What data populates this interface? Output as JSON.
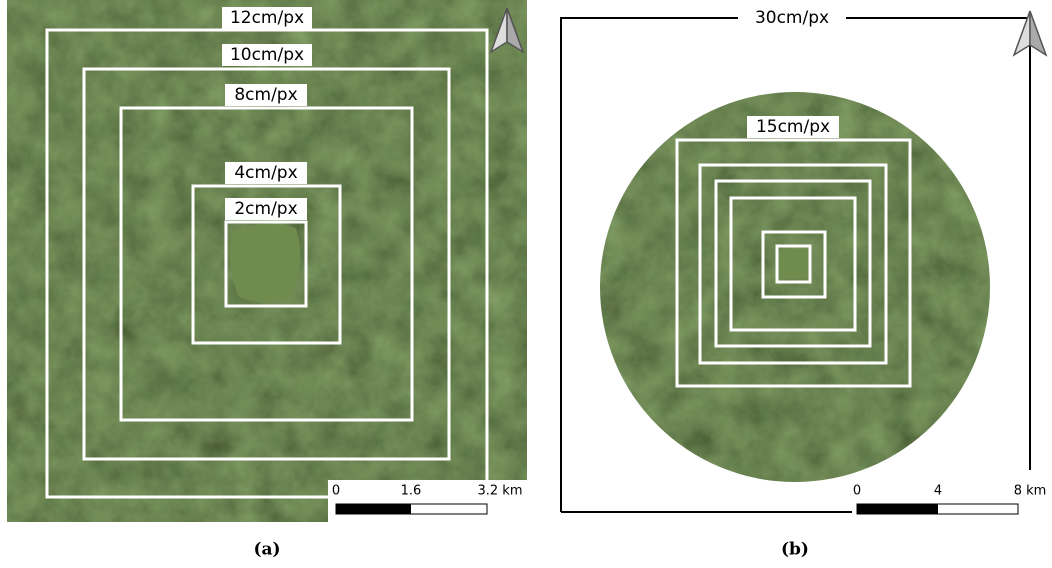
{
  "panel_a": {
    "labels": [
      "12cm/px",
      "10cm/px",
      "8cm/px",
      "4cm/px",
      "2cm/px"
    ],
    "scale": [
      "0",
      "1.6",
      "3.2 km"
    ],
    "caption": "(a)"
  },
  "panel_b": {
    "labels": [
      "30cm/px",
      "15cm/px"
    ],
    "scale": [
      "0",
      "4",
      "8 km"
    ],
    "caption": "(b)"
  }
}
